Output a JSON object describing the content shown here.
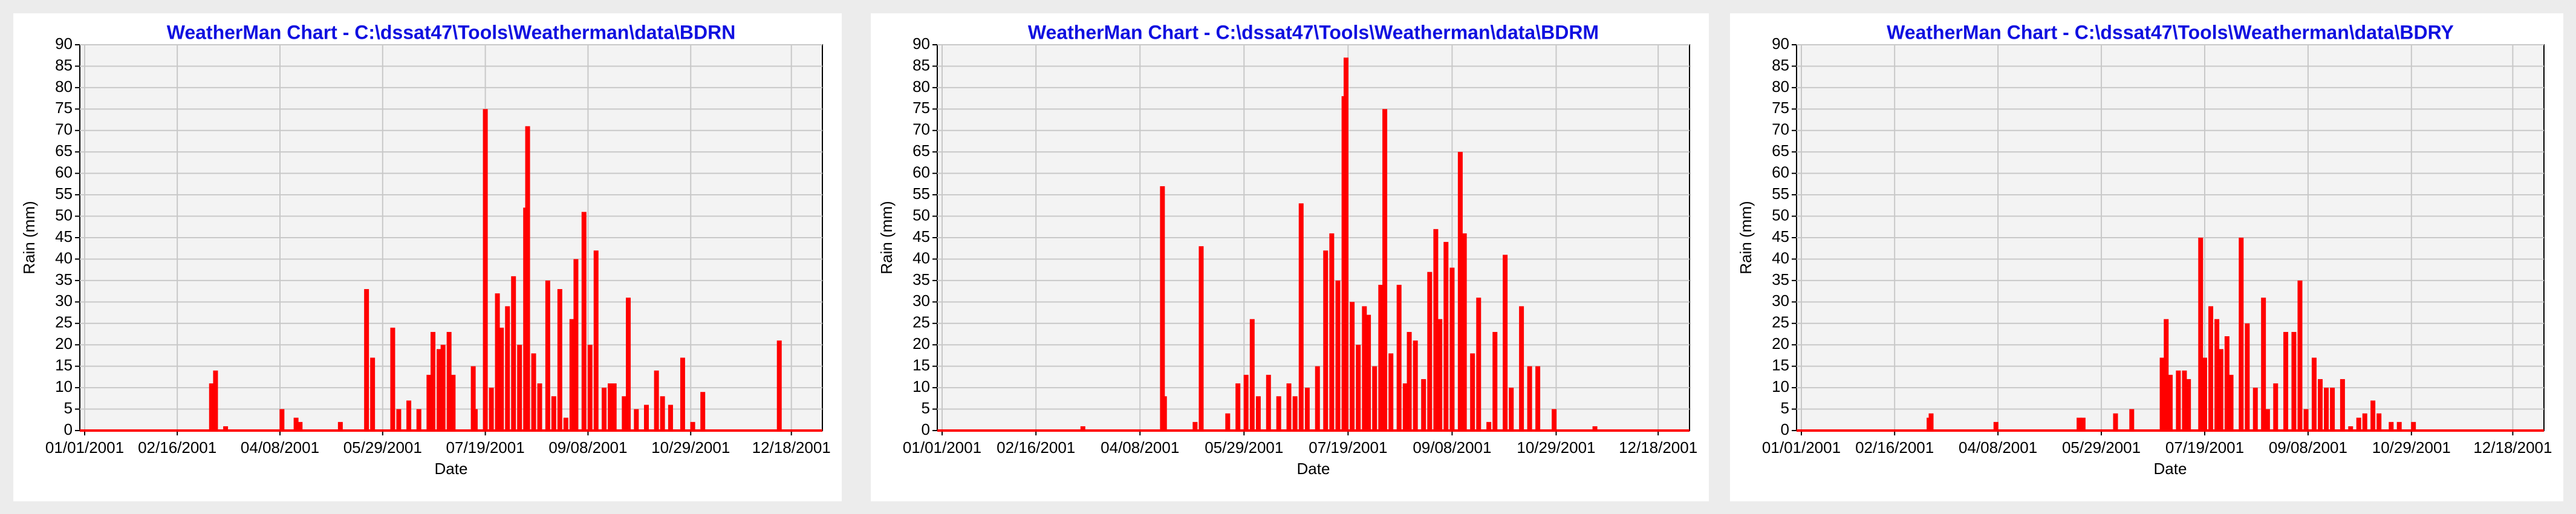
{
  "chart_data": [
    {
      "type": "bar",
      "title": "WeatherMan  Chart  -  C:\\dssat47\\Tools\\Weatherman\\data\\BDRN",
      "x_label": "Date",
      "y_label": "Rain (mm)",
      "color": "#ff0000",
      "grid": true,
      "xlim": [
        "01/01/2001",
        "12/31/2001"
      ],
      "xticks": [
        "01/01/2001",
        "02/16/2001",
        "04/08/2001",
        "05/29/2001",
        "07/19/2001",
        "09/08/2001",
        "10/29/2001",
        "12/18/2001"
      ],
      "ylim": [
        0,
        90
      ],
      "yticks": [
        0,
        5,
        10,
        15,
        20,
        25,
        30,
        35,
        40,
        45,
        50,
        55,
        60,
        65,
        70,
        75,
        80,
        85,
        90
      ],
      "x": [
        "03/05/2001",
        "03/07/2001",
        "03/12/2001",
        "04/09/2001",
        "04/16/2001",
        "04/18/2001",
        "05/08/2001",
        "05/21/2001",
        "05/24/2001",
        "06/03/2001",
        "06/06/2001",
        "06/11/2001",
        "06/16/2001",
        "06/21/2001",
        "06/23/2001",
        "06/26/2001",
        "06/28/2001",
        "07/01/2001",
        "07/03/2001",
        "07/13/2001",
        "07/14/2001",
        "07/19/2001",
        "07/22/2001",
        "07/25/2001",
        "07/27/2001",
        "07/30/2001",
        "08/02/2001",
        "08/05/2001",
        "08/08/2001",
        "08/09/2001",
        "08/12/2001",
        "08/15/2001",
        "08/19/2001",
        "08/22/2001",
        "08/25/2001",
        "08/28/2001",
        "08/31/2001",
        "09/02/2001",
        "09/06/2001",
        "09/09/2001",
        "09/12/2001",
        "09/16/2001",
        "09/19/2001",
        "09/21/2001",
        "09/26/2001",
        "09/28/2001",
        "10/02/2001",
        "10/07/2001",
        "10/12/2001",
        "10/15/2001",
        "10/19/2001",
        "10/25/2001",
        "10/30/2001",
        "11/04/2001",
        "12/12/2001"
      ],
      "values": [
        11,
        14,
        1,
        5,
        3,
        2,
        2,
        33,
        17,
        24,
        5,
        7,
        5,
        13,
        23,
        19,
        20,
        23,
        13,
        15,
        5,
        75,
        10,
        32,
        24,
        29,
        36,
        20,
        52,
        71,
        18,
        11,
        35,
        8,
        33,
        3,
        26,
        40,
        51,
        20,
        42,
        10,
        11,
        11,
        8,
        31,
        5,
        6,
        14,
        8,
        6,
        17,
        2,
        9,
        21
      ]
    },
    {
      "type": "bar",
      "title": "WeatherMan  Chart  -  C:\\dssat47\\Tools\\Weatherman\\data\\BDRM",
      "x_label": "Date",
      "y_label": "Rain (mm)",
      "color": "#ff0000",
      "grid": true,
      "xlim": [
        "01/01/2001",
        "12/31/2001"
      ],
      "xticks": [
        "01/01/2001",
        "02/16/2001",
        "04/08/2001",
        "05/29/2001",
        "07/19/2001",
        "09/08/2001",
        "10/29/2001",
        "12/18/2001"
      ],
      "ylim": [
        0,
        90
      ],
      "yticks": [
        0,
        5,
        10,
        15,
        20,
        25,
        30,
        35,
        40,
        45,
        50,
        55,
        60,
        65,
        70,
        75,
        80,
        85,
        90
      ],
      "x": [
        "03/11/2001",
        "04/19/2001",
        "04/20/2001",
        "05/05/2001",
        "05/08/2001",
        "05/21/2001",
        "05/26/2001",
        "05/30/2001",
        "06/02/2001",
        "06/05/2001",
        "06/10/2001",
        "06/15/2001",
        "06/20/2001",
        "06/23/2001",
        "06/26/2001",
        "06/29/2001",
        "07/04/2001",
        "07/08/2001",
        "07/11/2001",
        "07/14/2001",
        "07/17/2001",
        "07/18/2001",
        "07/21/2001",
        "07/24/2001",
        "07/27/2001",
        "07/29/2001",
        "08/01/2001",
        "08/04/2001",
        "08/06/2001",
        "08/09/2001",
        "08/13/2001",
        "08/16/2001",
        "08/18/2001",
        "08/21/2001",
        "08/25/2001",
        "08/28/2001",
        "08/31/2001",
        "09/02/2001",
        "09/05/2001",
        "09/08/2001",
        "09/12/2001",
        "09/14/2001",
        "09/18/2001",
        "09/21/2001",
        "09/26/2001",
        "09/29/2001",
        "10/04/2001",
        "10/07/2001",
        "10/12/2001",
        "10/16/2001",
        "10/20/2001",
        "10/28/2001",
        "11/17/2001"
      ],
      "values": [
        1,
        57,
        8,
        2,
        43,
        4,
        11,
        13,
        26,
        8,
        13,
        8,
        11,
        8,
        53,
        10,
        15,
        42,
        46,
        35,
        78,
        87,
        30,
        20,
        29,
        27,
        15,
        34,
        75,
        18,
        34,
        11,
        23,
        21,
        12,
        37,
        47,
        26,
        44,
        38,
        65,
        46,
        18,
        31,
        2,
        23,
        41,
        10,
        29,
        15,
        15,
        5,
        1
      ]
    },
    {
      "type": "bar",
      "title": "WeatherMan  Chart  -  C:\\dssat47\\Tools\\Weatherman\\data\\BDRY",
      "x_label": "Date",
      "y_label": "Rain (mm)",
      "color": "#ff0000",
      "grid": true,
      "xlim": [
        "01/01/2001",
        "12/31/2001"
      ],
      "xticks": [
        "01/01/2001",
        "02/16/2001",
        "04/08/2001",
        "05/29/2001",
        "07/19/2001",
        "09/08/2001",
        "10/29/2001",
        "12/18/2001"
      ],
      "ylim": [
        0,
        90
      ],
      "yticks": [
        0,
        5,
        10,
        15,
        20,
        25,
        30,
        35,
        40,
        45,
        50,
        55,
        60,
        65,
        70,
        75,
        80,
        85,
        90
      ],
      "x": [
        "03/05/2001",
        "03/06/2001",
        "04/07/2001",
        "05/18/2001",
        "05/20/2001",
        "06/05/2001",
        "06/13/2001",
        "06/28/2001",
        "06/30/2001",
        "07/02/2001",
        "07/06/2001",
        "07/09/2001",
        "07/11/2001",
        "07/17/2001",
        "07/19/2001",
        "07/22/2001",
        "07/25/2001",
        "07/27/2001",
        "07/30/2001",
        "08/01/2001",
        "08/06/2001",
        "08/09/2001",
        "08/13/2001",
        "08/17/2001",
        "08/19/2001",
        "08/23/2001",
        "08/28/2001",
        "09/01/2001",
        "09/04/2001",
        "09/07/2001",
        "09/11/2001",
        "09/14/2001",
        "09/17/2001",
        "09/20/2001",
        "09/25/2001",
        "09/29/2001",
        "10/03/2001",
        "10/06/2001",
        "10/10/2001",
        "10/13/2001",
        "10/19/2001",
        "10/23/2001",
        "10/30/2001"
      ],
      "values": [
        3,
        4,
        2,
        3,
        3,
        4,
        5,
        17,
        26,
        13,
        14,
        14,
        12,
        45,
        17,
        29,
        26,
        19,
        22,
        13,
        45,
        25,
        10,
        31,
        5,
        11,
        23,
        23,
        35,
        5,
        17,
        12,
        10,
        10,
        12,
        1,
        3,
        4,
        7,
        4,
        2,
        2,
        2
      ]
    }
  ]
}
